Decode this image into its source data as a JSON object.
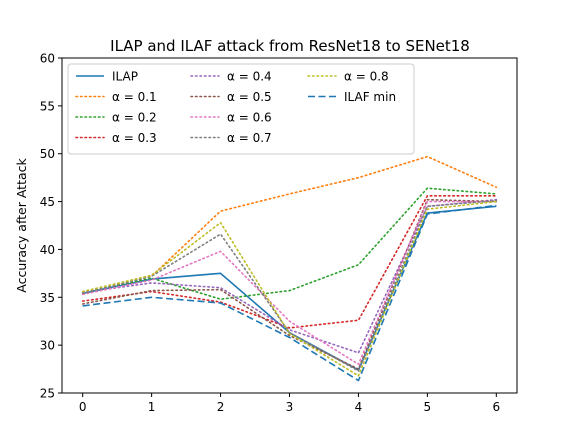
{
  "chart_data": {
    "type": "line",
    "title": "ILAP and ILAF attack from ResNet18 to SENet18",
    "xlabel": "",
    "ylabel": "Accuracy after Attack",
    "x": [
      0,
      1,
      2,
      3,
      4,
      5,
      6
    ],
    "xticks": [
      "0",
      "1",
      "2",
      "3",
      "4",
      "5",
      "6"
    ],
    "yticks": [
      "25",
      "30",
      "35",
      "40",
      "45",
      "50",
      "55",
      "60"
    ],
    "xlim": [
      -0.3,
      6.3
    ],
    "ylim": [
      25,
      60
    ],
    "legend_position": "top-left",
    "legend_columns": 3,
    "series": [
      {
        "name": "ILAP",
        "color": "#1f77b4",
        "style": "solid",
        "values": [
          35.4,
          36.9,
          37.5,
          31.3,
          27.4,
          43.8,
          44.5
        ]
      },
      {
        "name": "α = 0.1",
        "color": "#ff7f0e",
        "style": "dotted",
        "values": [
          35.4,
          37.2,
          44.0,
          45.8,
          47.5,
          49.7,
          46.5
        ]
      },
      {
        "name": "α = 0.2",
        "color": "#2ca02c",
        "style": "dotted",
        "values": [
          35.5,
          37.0,
          34.8,
          35.7,
          38.4,
          46.4,
          45.8
        ]
      },
      {
        "name": "α = 0.3",
        "color": "#d62728",
        "style": "dotted",
        "values": [
          34.6,
          35.6,
          34.5,
          31.8,
          32.6,
          45.6,
          45.6
        ]
      },
      {
        "name": "α = 0.4",
        "color": "#9467bd",
        "style": "dotted",
        "values": [
          35.5,
          36.5,
          36.0,
          31.6,
          29.2,
          44.5,
          45.2
        ]
      },
      {
        "name": "α = 0.5",
        "color": "#8c564b",
        "style": "dotted",
        "values": [
          34.3,
          35.7,
          35.8,
          31.0,
          27.5,
          45.2,
          45.0
        ]
      },
      {
        "name": "α = 0.6",
        "color": "#e377c2",
        "style": "dotted",
        "values": [
          35.3,
          36.8,
          39.8,
          32.5,
          28.0,
          45.0,
          45.0
        ]
      },
      {
        "name": "α = 0.7",
        "color": "#7f7f7f",
        "style": "dotted",
        "values": [
          35.4,
          37.2,
          41.6,
          31.3,
          27.3,
          44.5,
          45.1
        ]
      },
      {
        "name": "α = 0.8",
        "color": "#bcbd22",
        "style": "dotted",
        "values": [
          35.6,
          37.3,
          42.8,
          31.2,
          26.8,
          44.2,
          45.0
        ]
      },
      {
        "name": "ILAF min",
        "color": "#1f77b4",
        "style": "dashed",
        "values": [
          34.1,
          35.0,
          34.4,
          30.8,
          26.3,
          43.7,
          44.6
        ]
      }
    ]
  }
}
